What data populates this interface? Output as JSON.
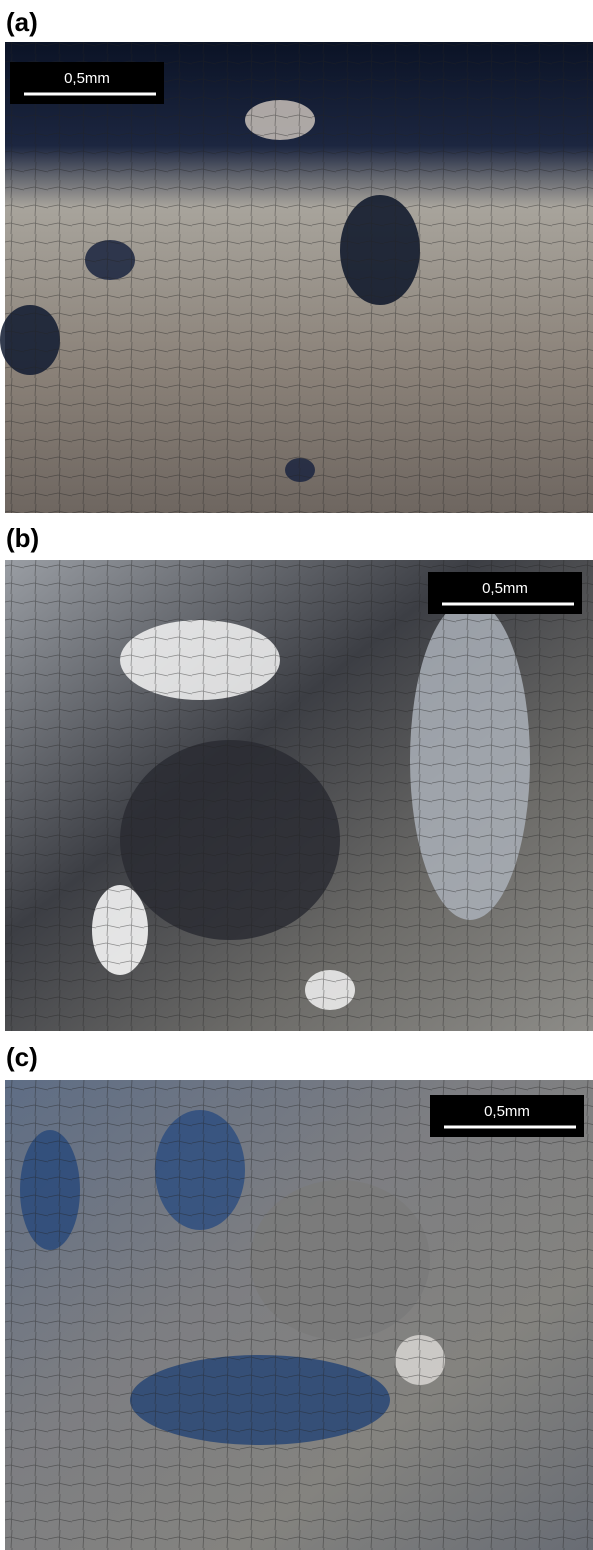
{
  "panels": [
    {
      "label": "(a)",
      "scale_bar": "0,5mm"
    },
    {
      "label": "(b)",
      "scale_bar": "0,5mm"
    },
    {
      "label": "(c)",
      "scale_bar": "0,5mm"
    }
  ]
}
